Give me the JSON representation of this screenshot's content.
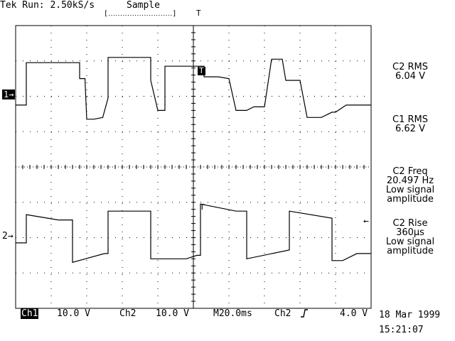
{
  "header": {
    "status": "Tek Run: 2.50kS/s",
    "acq_mode": "Sample",
    "trigger_bracket": "[․․․․․․․․․․․․․․․․․․․․․․․․․․․]",
    "trigger_pos_marker": "T"
  },
  "markers": {
    "ch1_ground": "1→",
    "ch2_ground": "2→",
    "trigger_point": "T",
    "ch2_trigger": "T",
    "trigger_level_arrow": "←"
  },
  "measurements": [
    {
      "lines": [
        "C2 RMS",
        "6.04 V"
      ]
    },
    {
      "lines": [
        "C1 RMS",
        "6.62 V"
      ]
    },
    {
      "lines": [
        "C2 Freq",
        "20.497 Hz",
        "Low signal",
        "amplitude"
      ]
    },
    {
      "lines": [
        "C2 Rise",
        "360µs",
        "Low signal",
        "amplitude"
      ]
    }
  ],
  "footer": {
    "ch1_label": "Ch1",
    "ch1_scale": "10.0 V",
    "ch2_label": "Ch2",
    "ch2_scale": "10.0 V",
    "timebase": "M20.0ms",
    "trig_source": "Ch2",
    "trig_slope_icon": "rising-edge-icon",
    "trig_level": "4.0 V",
    "date": "18 Mar 1999",
    "time": "15:21:07"
  },
  "chart_data": {
    "type": "line",
    "grid": true,
    "divisions": {
      "x": 10,
      "y": 8
    },
    "x_scale": "20.0 ms/div",
    "series": [
      {
        "name": "Ch1",
        "scale": "10.0 V/div",
        "x_div": [
          0,
          0.3,
          0.3,
          1.8,
          1.8,
          1.95,
          2.0,
          2.2,
          2.45,
          2.6,
          2.6,
          3.8,
          3.8,
          4.0,
          4.1,
          4.2,
          4.2,
          5.3,
          5.3,
          5.7,
          6.0,
          6.2,
          6.5,
          6.7,
          7.0,
          7.2,
          7.5,
          7.6,
          8.0,
          8.2,
          8.6,
          8.9,
          9.0,
          9.3,
          9.5,
          10.0
        ],
        "y_div": [
          -0.3,
          -0.3,
          0.9,
          0.9,
          0.45,
          0.45,
          -0.7,
          -0.7,
          -0.65,
          -0.1,
          1.05,
          1.05,
          0.4,
          -0.45,
          -0.45,
          -0.45,
          0.8,
          0.8,
          0.5,
          0.5,
          0.45,
          -0.45,
          -0.45,
          -0.35,
          -0.35,
          1.0,
          1.0,
          0.4,
          0.4,
          -0.65,
          -0.65,
          -0.5,
          -0.5,
          -0.3,
          -0.3,
          -0.3
        ]
      },
      {
        "name": "Ch2",
        "scale": "10.0 V/div",
        "x_div": [
          0,
          0.3,
          0.3,
          1.2,
          1.6,
          1.6,
          2.5,
          2.6,
          2.6,
          3.8,
          3.8,
          4.8,
          5.1,
          5.2,
          5.2,
          6.2,
          6.5,
          6.5,
          7.7,
          7.7,
          8.9,
          8.9,
          9.2,
          9.6,
          10.0
        ],
        "y_div": [
          -0.2,
          -0.2,
          0.6,
          0.45,
          0.45,
          -0.75,
          -0.5,
          -0.5,
          0.7,
          0.7,
          -0.65,
          -0.65,
          -0.55,
          -0.55,
          0.9,
          0.7,
          0.7,
          -0.65,
          -0.4,
          0.7,
          0.5,
          -0.7,
          -0.7,
          -0.5,
          -0.5
        ]
      }
    ]
  }
}
